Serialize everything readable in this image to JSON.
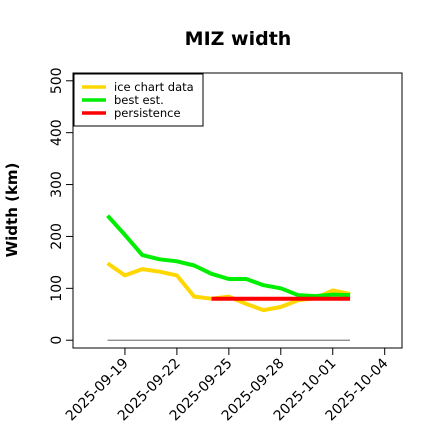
{
  "chart_data": {
    "type": "line",
    "title": "MIZ width",
    "xlabel": "",
    "ylabel": "Width (km)",
    "x_ticks": [
      "2025-09-19",
      "2025-09-22",
      "2025-09-25",
      "2025-09-28",
      "2025-10-01",
      "2025-10-04"
    ],
    "xlim": [
      "2025-09-16",
      "2025-10-05"
    ],
    "ylim": [
      -15,
      515
    ],
    "y_ticks": [
      0,
      100,
      200,
      300,
      400,
      500
    ],
    "grid": false,
    "legend_position": "top-left",
    "colors": {
      "ice_chart_data": "#ffd700",
      "best_est": "#00ee00",
      "persistence": "#ff0000",
      "reference": "#808080"
    },
    "series": [
      {
        "name": "ice chart data",
        "color": "#ffd700",
        "x": [
          "2025-09-18",
          "2025-09-19",
          "2025-09-20",
          "2025-09-21",
          "2025-09-22",
          "2025-09-23",
          "2025-09-24",
          "2025-09-25",
          "2025-09-26",
          "2025-09-27",
          "2025-09-28",
          "2025-09-29",
          "2025-09-30",
          "2025-10-01",
          "2025-10-02"
        ],
        "values": [
          148,
          125,
          137,
          132,
          125,
          84,
          80,
          84,
          70,
          58,
          64,
          77,
          81,
          96,
          89
        ]
      },
      {
        "name": "best est.",
        "color": "#00ee00",
        "x": [
          "2025-09-18",
          "2025-09-19",
          "2025-09-20",
          "2025-09-21",
          "2025-09-22",
          "2025-09-23",
          "2025-09-24",
          "2025-09-25",
          "2025-09-26",
          "2025-09-27",
          "2025-09-28",
          "2025-09-29",
          "2025-09-30",
          "2025-10-01",
          "2025-10-02"
        ],
        "values": [
          240,
          203,
          164,
          156,
          152,
          144,
          128,
          118,
          118,
          106,
          100,
          87,
          85,
          88,
          87
        ]
      },
      {
        "name": "persistence",
        "color": "#ff0000",
        "x": [
          "2025-09-24",
          "2025-10-02"
        ],
        "values": [
          80,
          80
        ]
      }
    ],
    "reference_line": {
      "x": [
        "2025-09-18",
        "2025-10-02"
      ],
      "values": [
        0,
        0
      ]
    }
  }
}
